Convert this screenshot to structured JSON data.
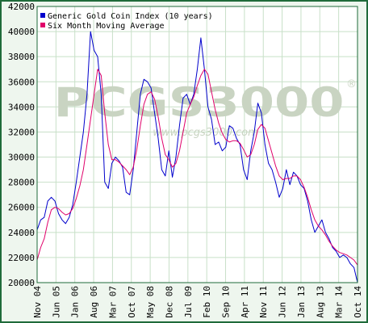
{
  "chart_data": {
    "type": "line",
    "title": "",
    "xlabel": "",
    "ylabel": "",
    "ylim": [
      20000,
      42000
    ],
    "yticks": [
      20000,
      22000,
      24000,
      26000,
      28000,
      30000,
      32000,
      34000,
      36000,
      38000,
      40000,
      42000
    ],
    "xticks": [
      "Nov 04",
      "Jun 05",
      "Jan 06",
      "Aug 06",
      "Mar 07",
      "Oct 07",
      "May 08",
      "Dec 08",
      "Jul 09",
      "Feb 10",
      "Sep 10",
      "Apr 11",
      "Nov 11",
      "Jun 12",
      "Jan 13",
      "Aug 13",
      "Mar 14",
      "Oct 14"
    ],
    "grid": true,
    "legend_position": "top-left",
    "colors": {
      "series1": "#0000cc",
      "series2": "#e0006a",
      "watermark": "#c9d4c2",
      "frame": "#1f6b3a",
      "plot_bg": "#ffffff"
    },
    "watermark": "PCGS3000",
    "watermark_sub": "www.pcgs3000.com",
    "watermark_mark": "®",
    "series": [
      {
        "name": "Generic Gold Coin Index (10 years)",
        "values": [
          24200,
          25000,
          25200,
          26500,
          26800,
          26500,
          25500,
          25000,
          24700,
          25200,
          26200,
          28000,
          30000,
          32000,
          35000,
          40000,
          38500,
          38000,
          35000,
          28000,
          27500,
          29500,
          30000,
          29700,
          29200,
          27200,
          27000,
          29000,
          32000,
          35000,
          36200,
          36000,
          35500,
          33500,
          31500,
          29000,
          28500,
          30500,
          28400,
          30000,
          32500,
          34700,
          35000,
          34200,
          35000,
          37000,
          39500,
          37000,
          34000,
          33000,
          31000,
          31200,
          30500,
          30800,
          32500,
          32300,
          31500,
          31000,
          29000,
          28200,
          30500,
          32000,
          34300,
          33500,
          31000,
          29500,
          29000,
          28000,
          26800,
          27500,
          29000,
          27800,
          28800,
          28500,
          27800,
          27500,
          26500,
          25000,
          24000,
          24500,
          25000,
          24000,
          23500,
          22800,
          22500,
          22000,
          22200,
          22000,
          21500,
          21200,
          20000
        ]
      },
      {
        "name": "Six Month Moving Average",
        "values": [
          21800,
          22800,
          23500,
          24800,
          25800,
          26000,
          25900,
          25600,
          25400,
          25500,
          25900,
          26700,
          27700,
          29000,
          31000,
          33000,
          35000,
          37000,
          36500,
          33500,
          31000,
          29800,
          29800,
          29600,
          29300,
          29000,
          28600,
          29200,
          30600,
          32500,
          34200,
          35000,
          35200,
          34600,
          33200,
          31500,
          30200,
          29800,
          29200,
          29500,
          30500,
          32000,
          33500,
          34200,
          34800,
          35700,
          36500,
          37000,
          36600,
          35200,
          33800,
          32700,
          31900,
          31400,
          31200,
          31300,
          31300,
          31100,
          30600,
          30000,
          30200,
          31000,
          32200,
          32600,
          32300,
          31300,
          30300,
          29300,
          28500,
          28200,
          28300,
          28300,
          28500,
          28500,
          28200,
          27600,
          26800,
          25800,
          25000,
          24500,
          24200,
          23800,
          23300,
          22900,
          22600,
          22400,
          22300,
          22200,
          22000,
          21800,
          21400
        ]
      }
    ]
  }
}
